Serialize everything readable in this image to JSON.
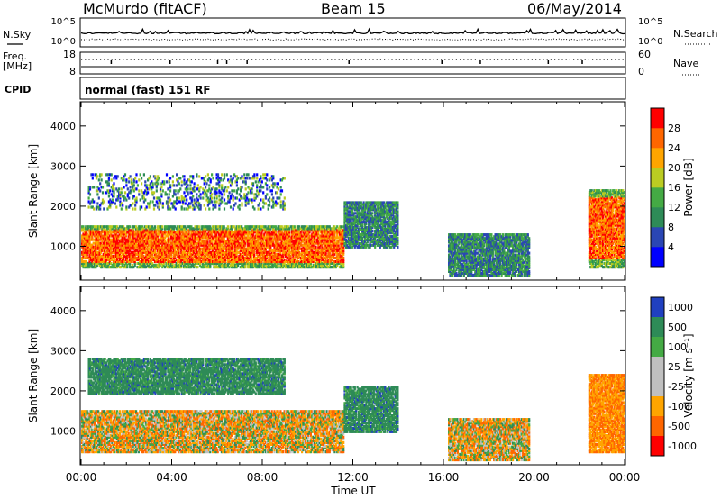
{
  "header": {
    "station": "McMurdo (fitACF)",
    "beam": "Beam 15",
    "date": "06/May/2014"
  },
  "labels": {
    "nsky": "N.Sky",
    "nsearch": "N.Search",
    "freq": "Freq.",
    "mhz": "[MHz]",
    "nave": "Nave",
    "cpid": "CPID",
    "mode": "normal (fast) 151 RF"
  },
  "noise_axis": {
    "top": "10^5",
    "bottom": "10^0"
  },
  "freq_axis": {
    "left_ticks": [
      "18",
      "8"
    ],
    "right_ticks": [
      "60",
      "0"
    ]
  },
  "time_axis": {
    "label": "Time UT",
    "ticks": [
      "00:00",
      "04:00",
      "08:00",
      "12:00",
      "16:00",
      "20:00",
      "00:00"
    ]
  },
  "colors": {
    "power": [
      "#0000ff",
      "#2a46b4",
      "#2e8b57",
      "#44aa44",
      "#bbcc22",
      "#ffa500",
      "#ff6600",
      "#ff0000"
    ],
    "velocity": [
      "#2040c0",
      "#2e8b57",
      "#44aa44",
      "#c0c0c0",
      "#c0c0c0",
      "#ffa500",
      "#ff6600",
      "#ff0000"
    ]
  },
  "chart_data": [
    {
      "type": "heatmap",
      "panel": "power",
      "ylabel": "Slant Range [km]",
      "xlabel": "",
      "x_ticks": [
        "00:00",
        "04:00",
        "08:00",
        "12:00",
        "16:00",
        "20:00",
        "00:00"
      ],
      "y_ticks": [
        "1000",
        "2000",
        "3000",
        "4000"
      ],
      "ylim": [
        180,
        4580
      ],
      "colorbar": {
        "label": "Power [dB]",
        "ticks": [
          "4",
          "8",
          "12",
          "16",
          "20",
          "24",
          "28"
        ],
        "range": [
          0,
          32
        ]
      },
      "echo_regions": [
        {
          "t0": 0.0,
          "t1": 11.6,
          "r0": 450,
          "r1": 1500,
          "level": "high"
        },
        {
          "t0": 11.6,
          "t1": 14.0,
          "r0": 950,
          "r1": 2100,
          "level": "low"
        },
        {
          "t0": 0.3,
          "t1": 9.0,
          "r0": 1900,
          "r1": 2800,
          "level": "scatter"
        },
        {
          "t0": 16.2,
          "t1": 19.8,
          "r0": 250,
          "r1": 1300,
          "level": "low"
        },
        {
          "t0": 22.4,
          "t1": 24.0,
          "r0": 450,
          "r1": 2400,
          "level": "high"
        }
      ]
    },
    {
      "type": "heatmap",
      "panel": "velocity",
      "ylabel": "Slant Range [km]",
      "xlabel": "Time UT",
      "x_ticks": [
        "00:00",
        "04:00",
        "08:00",
        "12:00",
        "16:00",
        "20:00",
        "00:00"
      ],
      "y_ticks": [
        "1000",
        "2000",
        "3000",
        "4000"
      ],
      "ylim": [
        180,
        4580
      ],
      "colorbar": {
        "label": "Velocity [m s⁻¹]",
        "ticks": [
          "1000",
          "500",
          "100",
          "25",
          "-25",
          "-100",
          "-500",
          "-1000"
        ]
      },
      "echo_regions": [
        {
          "t0": 0.0,
          "t1": 11.6,
          "r0": 450,
          "r1": 1500,
          "sign": "mixed"
        },
        {
          "t0": 11.6,
          "t1": 14.0,
          "r0": 950,
          "r1": 2100,
          "sign": "toward"
        },
        {
          "t0": 0.3,
          "t1": 9.0,
          "r0": 1900,
          "r1": 2800,
          "sign": "toward"
        },
        {
          "t0": 16.2,
          "t1": 19.8,
          "r0": 250,
          "r1": 1300,
          "sign": "mixed"
        },
        {
          "t0": 22.4,
          "t1": 24.0,
          "r0": 450,
          "r1": 2400,
          "sign": "away"
        }
      ]
    }
  ]
}
